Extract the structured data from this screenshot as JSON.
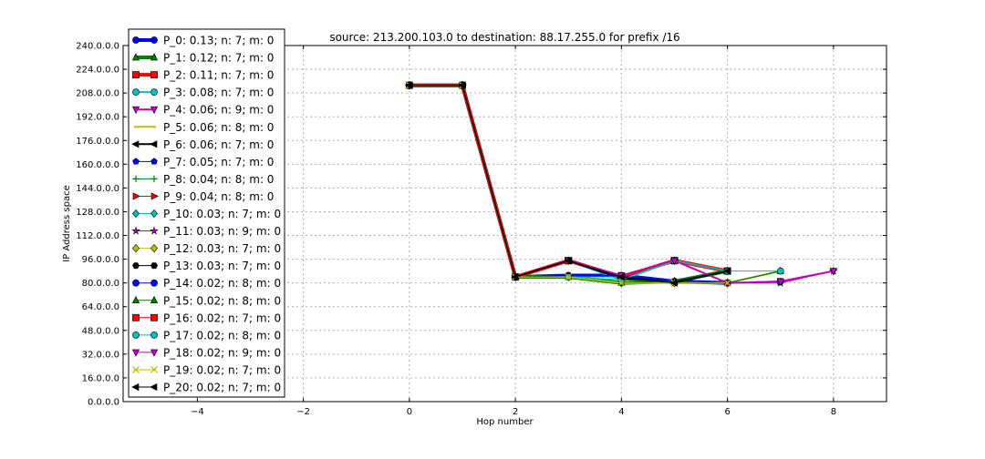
{
  "chart_data": {
    "type": "line",
    "title": "source: 213.200.103.0 to destination: 88.17.255.0 for prefix /16",
    "xlabel": "Hop number",
    "ylabel": "IP Address space",
    "xlim": [
      -5.4,
      9
    ],
    "ylim": [
      0,
      240
    ],
    "x_ticks": [
      -4,
      -2,
      0,
      2,
      4,
      6,
      8
    ],
    "x_tick_labels": [
      "−4",
      "−2",
      "0",
      "2",
      "4",
      "6",
      "8"
    ],
    "y_ticks": [
      0,
      16,
      32,
      48,
      64,
      80,
      96,
      112,
      128,
      144,
      160,
      176,
      192,
      208,
      224,
      240
    ],
    "y_tick_labels": [
      "0.0.0.0",
      "16.0.0.0",
      "32.0.0.0",
      "48.0.0.0",
      "64.0.0.0",
      "80.0.0.0",
      "96.0.0.0",
      "112.0.0.0",
      "128.0.0.0",
      "144.0.0.0",
      "160.0.0.0",
      "176.0.0.0",
      "192.0.0.0",
      "208.0.0.0",
      "224.0.0.0",
      "240.0.0.0"
    ],
    "grid": true,
    "legend_position": "upper-left",
    "series": [
      {
        "name": "P_0: 0.13; n: 7; m: 0",
        "color": "#0000ff",
        "marker": "circle",
        "width": 4,
        "x": [
          0,
          1,
          2,
          3,
          4,
          5,
          6
        ],
        "y": [
          213.2,
          213.2,
          84,
          85,
          85,
          81,
          80
        ]
      },
      {
        "name": "P_1: 0.12; n: 7; m: 0",
        "color": "#007f00",
        "marker": "triangle-up",
        "width": 4,
        "x": [
          0,
          1,
          2,
          3,
          4,
          5,
          6
        ],
        "y": [
          213.2,
          213.2,
          84,
          84,
          80,
          81,
          88
        ]
      },
      {
        "name": "P_2: 0.11; n: 7; m: 0",
        "color": "#ff0000",
        "marker": "square",
        "width": 4,
        "x": [
          0,
          1,
          2,
          3,
          4,
          5,
          6
        ],
        "y": [
          213.2,
          213.2,
          84,
          95,
          84,
          95,
          88
        ]
      },
      {
        "name": "P_3: 0.08; n: 7; m: 0",
        "color": "#00bfbf",
        "marker": "circle",
        "width": 2,
        "x": [
          0,
          1,
          2,
          3,
          4,
          5,
          6
        ],
        "y": [
          213.2,
          213.2,
          84,
          95,
          82,
          95,
          88
        ]
      },
      {
        "name": "P_4: 0.06; n: 9; m: 0",
        "color": "#bf00bf",
        "marker": "triangle-down",
        "width": 2,
        "x": [
          0,
          1,
          2,
          3,
          4,
          5,
          6,
          7,
          8
        ],
        "y": [
          213.2,
          213.2,
          84,
          95,
          85,
          95,
          80,
          81,
          88
        ]
      },
      {
        "name": "P_5: 0.06; n: 8; m: 0",
        "color": "#bfbf00",
        "marker": "none",
        "width": 2,
        "x": [
          0,
          1,
          2,
          3,
          4,
          5,
          6,
          7
        ],
        "y": [
          213.2,
          213.2,
          84,
          84,
          80,
          80,
          80,
          88
        ]
      },
      {
        "name": "P_6: 0.06; n: 7; m: 0",
        "color": "#000000",
        "marker": "triangle-left",
        "width": 2,
        "x": [
          0,
          1,
          2,
          3,
          4,
          5,
          6
        ],
        "y": [
          213.2,
          213.2,
          84,
          95,
          83,
          80,
          88
        ]
      },
      {
        "name": "P_7: 0.05; n: 7; m: 0",
        "color": "#0000ff",
        "marker": "pentagon",
        "width": 1,
        "x": [
          0,
          1,
          2,
          3,
          4,
          5,
          6
        ],
        "y": [
          213.2,
          213.2,
          84,
          85,
          84,
          80,
          80
        ]
      },
      {
        "name": "P_8: 0.04; n: 8; m: 0",
        "color": "#007f00",
        "marker": "plus",
        "width": 1,
        "x": [
          0,
          1,
          2,
          3,
          4,
          5,
          6,
          7
        ],
        "y": [
          213.2,
          213.2,
          84,
          84,
          82,
          81,
          80,
          88
        ]
      },
      {
        "name": "P_9: 0.04; n: 8; m: 0",
        "color": "#ff0000",
        "marker": "triangle-right",
        "width": 1,
        "x": [
          0,
          1,
          2,
          3,
          4,
          5,
          6,
          7
        ],
        "y": [
          213.2,
          213.2,
          84,
          95,
          85,
          95,
          80,
          81
        ]
      },
      {
        "name": "P_10: 0.03; n: 7; m: 0",
        "color": "#00bfbf",
        "marker": "diamond",
        "width": 1,
        "x": [
          0,
          1,
          2,
          3,
          4,
          5,
          6
        ],
        "y": [
          213.2,
          213.2,
          84,
          84,
          84,
          95,
          88
        ]
      },
      {
        "name": "P_11: 0.03; n: 9; m: 0",
        "color": "#bf00bf",
        "marker": "star",
        "width": 1,
        "x": [
          0,
          1,
          2,
          3,
          4,
          5,
          6,
          7,
          8
        ],
        "y": [
          213.2,
          213.2,
          84,
          95,
          84,
          95,
          80,
          80,
          88
        ]
      },
      {
        "name": "P_12: 0.03; n: 7; m: 0",
        "color": "#bfbf00",
        "marker": "diamond",
        "width": 1,
        "x": [
          0,
          1,
          2,
          3,
          4,
          5,
          6
        ],
        "y": [
          213.2,
          213.2,
          84,
          84,
          80,
          80,
          88
        ]
      },
      {
        "name": "P_13: 0.03; n: 7; m: 0",
        "color": "#000000",
        "marker": "hexagon",
        "width": 1,
        "x": [
          0,
          1,
          2,
          3,
          4,
          5,
          6
        ],
        "y": [
          213.2,
          213.2,
          84,
          95,
          84,
          81,
          88
        ]
      },
      {
        "name": "P_14: 0.02; n: 8; m: 0",
        "color": "#0000ff",
        "marker": "circle",
        "width": 1,
        "x": [
          0,
          1,
          2,
          3,
          4,
          5,
          6,
          7
        ],
        "y": [
          213.2,
          213.2,
          84,
          85,
          85,
          81,
          80,
          81
        ]
      },
      {
        "name": "P_15: 0.02; n: 8; m: 0",
        "color": "#007f00",
        "marker": "triangle-up",
        "width": 1,
        "x": [
          0,
          1,
          2,
          3,
          4,
          5,
          6,
          7
        ],
        "y": [
          213.2,
          213.2,
          84,
          84,
          80,
          81,
          80,
          88
        ]
      },
      {
        "name": "P_16: 0.02; n: 7; m: 0",
        "color": "#ff0000",
        "marker": "square",
        "width": 1,
        "x": [
          0,
          1,
          2,
          3,
          4,
          5,
          6
        ],
        "y": [
          213.2,
          213.2,
          84,
          95,
          84,
          95,
          88
        ]
      },
      {
        "name": "P_17: 0.02; n: 8; m: 0",
        "color": "#00bfbf",
        "marker": "circle",
        "width": 1,
        "x": [
          0,
          1,
          2,
          3,
          4,
          5,
          6,
          7
        ],
        "y": [
          213.2,
          213.2,
          84,
          84,
          82,
          95,
          88,
          88
        ]
      },
      {
        "name": "P_18: 0.02; n: 9; m: 0",
        "color": "#bf00bf",
        "marker": "triangle-down",
        "width": 1,
        "x": [
          0,
          1,
          2,
          3,
          4,
          5,
          6,
          7,
          8
        ],
        "y": [
          213.2,
          213.2,
          84,
          95,
          85,
          95,
          80,
          81,
          88
        ]
      },
      {
        "name": "P_19: 0.02; n: 7; m: 0",
        "color": "#bfbf00",
        "marker": "x",
        "width": 1,
        "x": [
          0,
          1,
          2,
          3,
          4,
          5,
          6
        ],
        "y": [
          213.2,
          213.2,
          84,
          84,
          80,
          80,
          80
        ]
      },
      {
        "name": "P_20: 0.02; n: 7; m: 0",
        "color": "#000000",
        "marker": "triangle-left",
        "width": 1,
        "x": [
          0,
          1,
          2,
          3,
          4,
          5,
          6
        ],
        "y": [
          213.2,
          213.2,
          84,
          95,
          84,
          80,
          88
        ]
      }
    ]
  }
}
